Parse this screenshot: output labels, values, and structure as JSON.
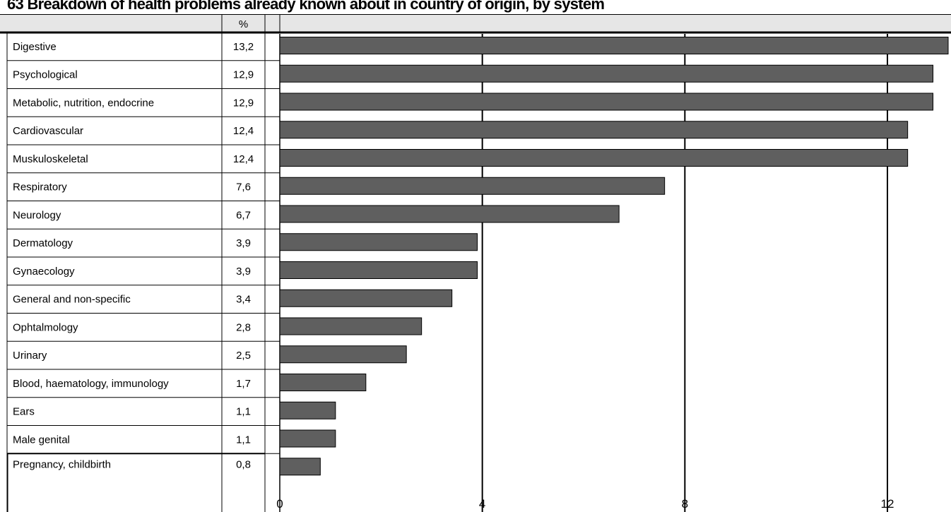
{
  "title": "63 Breakdown of health problems already known about in country of origin, by system",
  "table": {
    "value_header": "%"
  },
  "chart_data": {
    "type": "bar",
    "orientation": "horizontal",
    "title": "63 Breakdown of health problems already known about in country of origin, by system",
    "categories": [
      "Digestive",
      "Psychological",
      "Metabolic, nutrition, endocrine",
      "Cardiovascular",
      "Muskuloskeletal",
      "Respiratory",
      "Neurology",
      "Dermatology",
      "Gynaecology",
      "General and non-specific",
      "Ophtalmology",
      "Urinary",
      "Blood, haematology, immunology",
      "Ears",
      "Male genital",
      "Pregnancy, childbirth"
    ],
    "value_labels": [
      "13,2",
      "12,9",
      "12,9",
      "12,4",
      "12,4",
      "7,6",
      "6,7",
      "3,9",
      "3,9",
      "3,4",
      "2,8",
      "2,5",
      "1,7",
      "1,1",
      "1,1",
      "0,8"
    ],
    "values": [
      13.2,
      12.9,
      12.9,
      12.4,
      12.4,
      7.6,
      6.7,
      3.9,
      3.9,
      3.4,
      2.8,
      2.5,
      1.7,
      1.1,
      1.1,
      0.8
    ],
    "xlim": [
      0,
      13.2
    ],
    "xticks": [
      0,
      4,
      8,
      12
    ],
    "xticklabels": [
      "0",
      "4",
      "8",
      "12"
    ],
    "grid": true,
    "bar_color": "#5f5f5f"
  }
}
